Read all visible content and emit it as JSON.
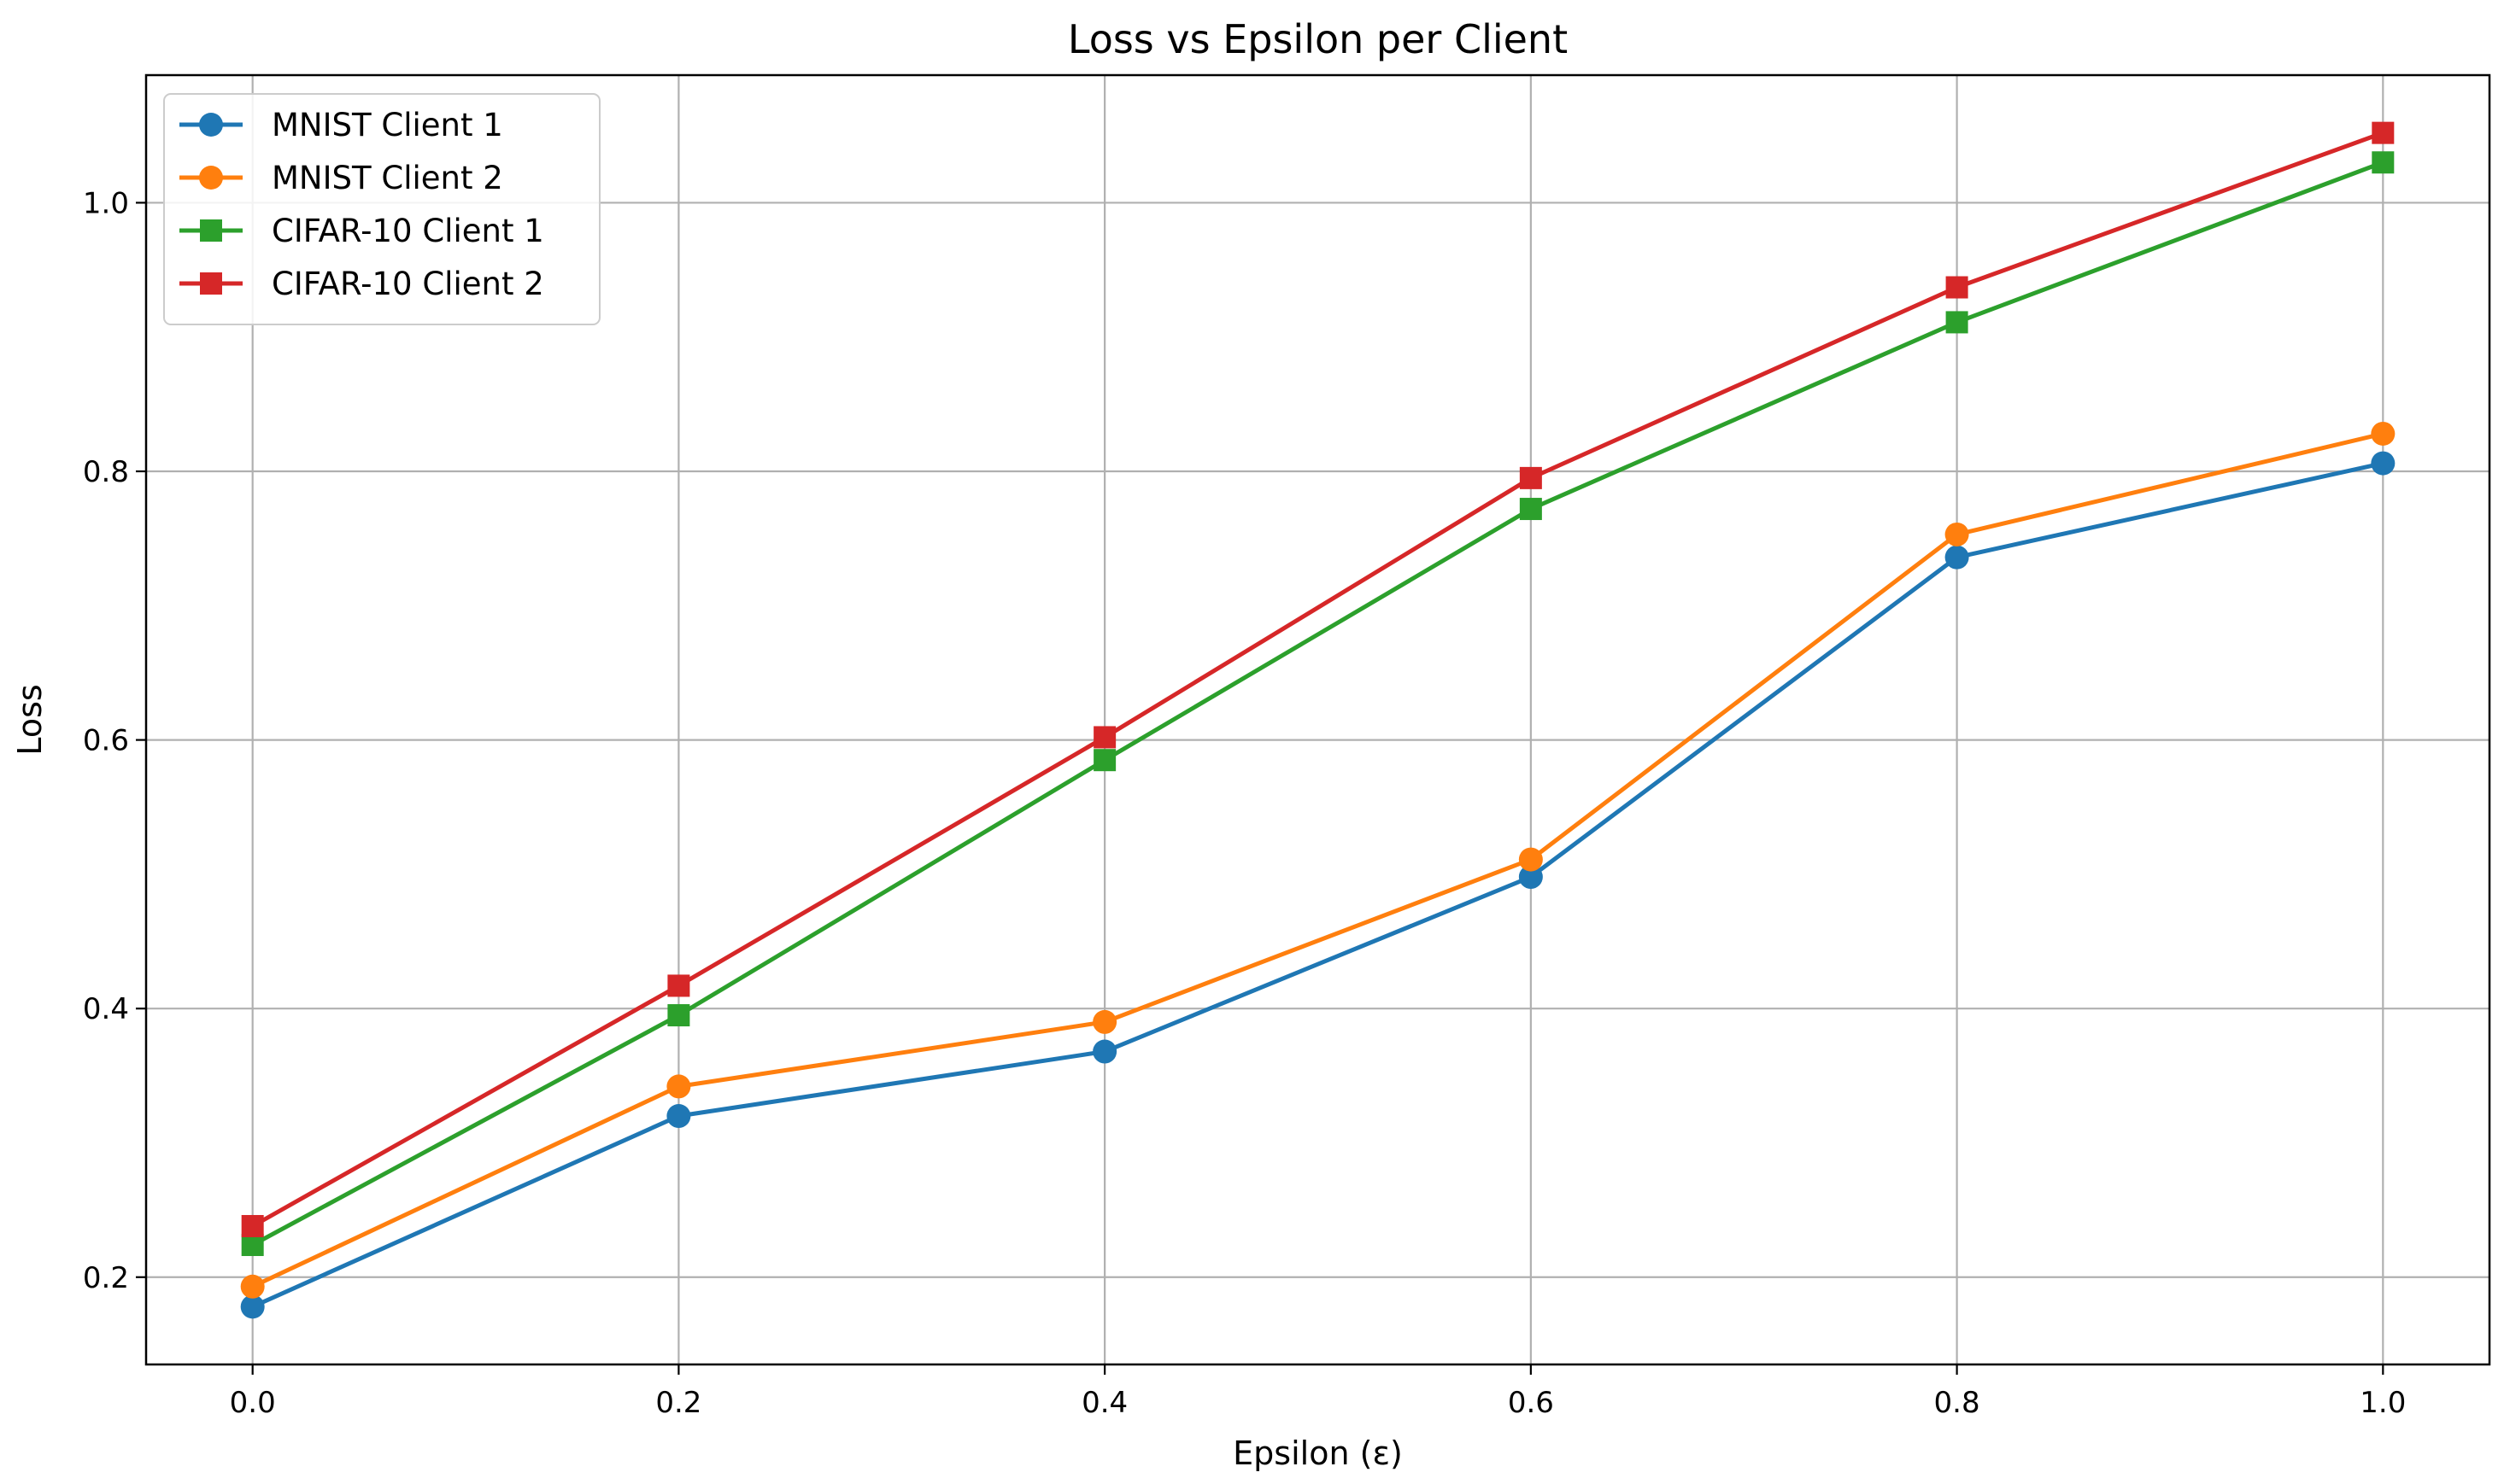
{
  "chart_data": {
    "type": "line",
    "title": "Loss vs Epsilon per Client",
    "xlabel": "Epsilon (ε)",
    "ylabel": "Loss",
    "x": [
      0.0,
      0.2,
      0.4,
      0.6,
      0.8,
      1.0
    ],
    "x_ticks": [
      "0.0",
      "0.2",
      "0.4",
      "0.6",
      "0.8",
      "1.0"
    ],
    "y_ticks": [
      "0.2",
      "0.4",
      "0.6",
      "0.8",
      "1.0"
    ],
    "xlim": [
      -0.05,
      1.05
    ],
    "ylim": [
      0.135,
      1.095
    ],
    "grid": true,
    "legend_position": "top-left",
    "series": [
      {
        "name": "MNIST Client 1",
        "color": "#1f77b4",
        "marker": "circle",
        "values": [
          0.178,
          0.32,
          0.368,
          0.498,
          0.736,
          0.806
        ]
      },
      {
        "name": "MNIST Client 2",
        "color": "#ff7f0e",
        "marker": "circle",
        "values": [
          0.193,
          0.342,
          0.39,
          0.511,
          0.753,
          0.828
        ]
      },
      {
        "name": "CIFAR-10 Client 1",
        "color": "#2ca02c",
        "marker": "square",
        "values": [
          0.224,
          0.395,
          0.585,
          0.772,
          0.911,
          1.03
        ]
      },
      {
        "name": "CIFAR-10 Client 2",
        "color": "#d62728",
        "marker": "square",
        "values": [
          0.238,
          0.417,
          0.602,
          0.795,
          0.937,
          1.052
        ]
      }
    ]
  }
}
